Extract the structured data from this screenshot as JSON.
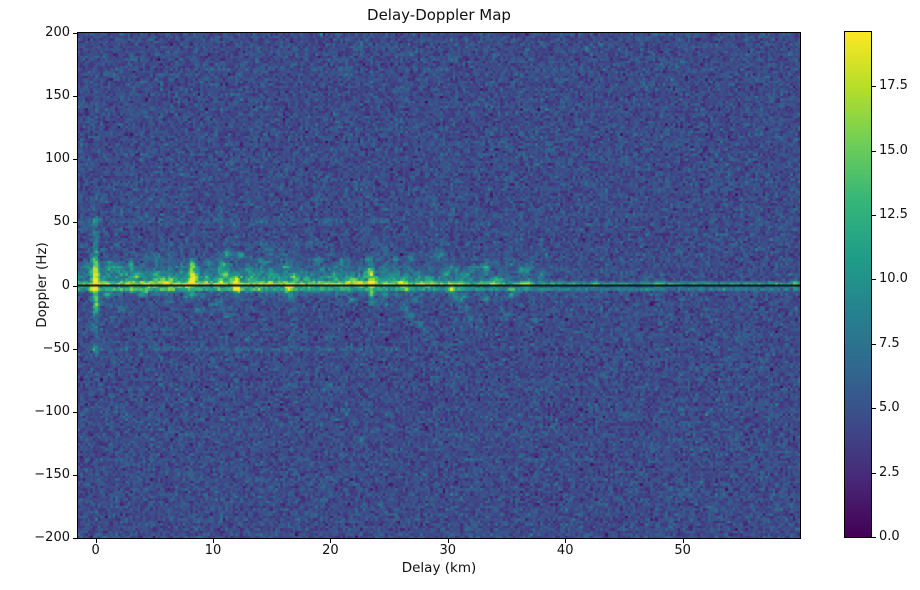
{
  "figure": {
    "background": "#ffffff",
    "spine_color": "#000000",
    "text_color": "#1a1a1a"
  },
  "chart_data": {
    "type": "heatmap",
    "title": "Delay-Doppler Map",
    "xlabel": "Delay (km)",
    "ylabel": "Doppler (Hz)",
    "x_range": [
      -1.5,
      60
    ],
    "y_range": [
      -200,
      200
    ],
    "x_ticks": [
      0,
      10,
      20,
      30,
      40,
      50
    ],
    "y_ticks": [
      200,
      150,
      100,
      50,
      0,
      -50,
      -100,
      -150,
      -200
    ],
    "grid": false,
    "colormap": {
      "name": "viridis",
      "stops": [
        "#440154",
        "#482878",
        "#3e4a89",
        "#31688e",
        "#26828e",
        "#1f9e89",
        "#35b779",
        "#6ece58",
        "#b5de2b",
        "#fde725"
      ]
    },
    "colorbar": {
      "min": 0,
      "max": 19.6,
      "ticks": [
        0.0,
        2.5,
        5.0,
        7.5,
        10.0,
        12.5,
        15.0,
        17.5
      ]
    },
    "noise": {
      "mean": 4.55,
      "std": 1.15,
      "seed": 42
    },
    "zero_line": {
      "doppler": 0,
      "color": "#0a0a23"
    },
    "ridge_lines": [
      {
        "doppler_hz": 1.6,
        "sigma_hz": 1.3,
        "amplitude": 8.5
      },
      {
        "doppler_hz": -2.2,
        "sigma_hz": 1.6,
        "amplitude": 4.2
      }
    ],
    "band": {
      "center_hz": 2,
      "sigma_up_hz": 11,
      "sigma_down_hz": 7,
      "amplitude": 5.2,
      "delay_start_km": -1.5,
      "delay_fade_start_km": 24,
      "delay_end_km": 42
    },
    "center_column": {
      "delay_km": 0,
      "amplitude": 1.6,
      "sigma_delay_km": 0.3,
      "sigma_doppler_hz": 48
    },
    "sideband_lines": [
      {
        "doppler_hz": 51,
        "sigma_hz": 1.8,
        "delay_range_km": [
          -1.2,
          26
        ],
        "amplitude": 1.2
      },
      {
        "doppler_hz": -50,
        "sigma_hz": 1.8,
        "delay_range_km": [
          -1.2,
          26
        ],
        "amplitude": 1.1
      }
    ],
    "vertical_stripes": {
      "sigma_delay_km": 0.22,
      "spread_up_hz": 24,
      "spread_down_hz": 13,
      "delays_km": [
        1.0,
        2.1,
        3.2,
        4.3,
        5.3,
        6.4,
        7.4,
        8.3,
        9.5,
        10.6,
        11.3,
        12.1,
        13.0,
        14.0,
        15.0,
        16.0,
        17.0,
        18.2,
        19.3,
        20.4,
        21.5,
        22.5,
        23.5,
        24.6,
        25.6,
        26.6
      ],
      "amps": [
        1.0,
        1.1,
        0.9,
        1.2,
        1.0,
        1.3,
        1.0,
        1.9,
        1.1,
        1.4,
        1.5,
        1.3,
        1.0,
        1.1,
        0.9,
        1.2,
        1.4,
        1.0,
        0.9,
        1.1,
        1.0,
        0.9,
        2.0,
        0.8,
        1.0,
        0.9
      ]
    },
    "bright_spots": [
      [
        0,
        20,
        8
      ],
      [
        0,
        15,
        10
      ],
      [
        0,
        9,
        11
      ],
      [
        0,
        4,
        12
      ],
      [
        -0.1,
        -3,
        10
      ],
      [
        0,
        -9,
        9
      ],
      [
        0.1,
        -15,
        8
      ],
      [
        0,
        -21,
        6
      ],
      [
        0,
        27,
        5
      ],
      [
        0,
        34,
        4
      ],
      [
        0,
        41,
        3.5
      ],
      [
        0,
        51,
        6
      ],
      [
        0,
        -50,
        5
      ],
      [
        0,
        -32,
        3
      ],
      [
        8.2,
        11,
        9
      ],
      [
        8.3,
        5,
        9
      ],
      [
        8.2,
        -7,
        5
      ],
      [
        8.2,
        17,
        5
      ],
      [
        10.9,
        17,
        6
      ],
      [
        11.1,
        9,
        7
      ],
      [
        11.2,
        25,
        4
      ],
      [
        12.1,
        -1,
        13
      ],
      [
        12.0,
        4,
        8
      ],
      [
        16.5,
        -2,
        11
      ],
      [
        16.9,
        7,
        6
      ],
      [
        16.6,
        -9,
        4
      ],
      [
        23.5,
        3,
        12
      ],
      [
        23.5,
        -6,
        8
      ],
      [
        23.4,
        12,
        6
      ],
      [
        23.3,
        20,
        4
      ],
      [
        23.6,
        -14,
        4
      ],
      [
        30.4,
        -3,
        7
      ],
      [
        30.6,
        -9,
        4
      ],
      [
        26.3,
        -17,
        3.5
      ],
      [
        26.9,
        -23,
        3.5
      ],
      [
        27.5,
        -29,
        3
      ],
      [
        28.1,
        -34,
        2.5
      ],
      [
        31.1,
        -13,
        3
      ],
      [
        31.5,
        -19,
        3
      ],
      [
        31.9,
        -25,
        2.5
      ],
      [
        10.6,
        -13,
        3
      ],
      [
        11.0,
        -18,
        3
      ],
      [
        11.4,
        -24,
        2.5
      ],
      [
        14.8,
        28,
        3.5
      ],
      [
        18.3,
        33,
        3
      ],
      [
        20.2,
        -40,
        2.5
      ],
      [
        5.2,
        22,
        4
      ],
      [
        3.1,
        15,
        4
      ],
      [
        6.3,
        -12,
        3
      ],
      [
        2.2,
        -18,
        3
      ],
      [
        33.8,
        2,
        5
      ],
      [
        36.9,
        1.5,
        6
      ],
      [
        42.5,
        1.5,
        4
      ],
      [
        48.0,
        1.5,
        3.5
      ],
      [
        59.5,
        1.5,
        6
      ],
      [
        35,
        -22,
        2.5
      ],
      [
        37.5,
        -27,
        2.5
      ]
    ],
    "speckle": {
      "count": 170,
      "delay_range": [
        -1,
        38
      ],
      "doppler_range": [
        -30,
        32
      ],
      "amp_range": [
        1,
        5
      ]
    }
  }
}
